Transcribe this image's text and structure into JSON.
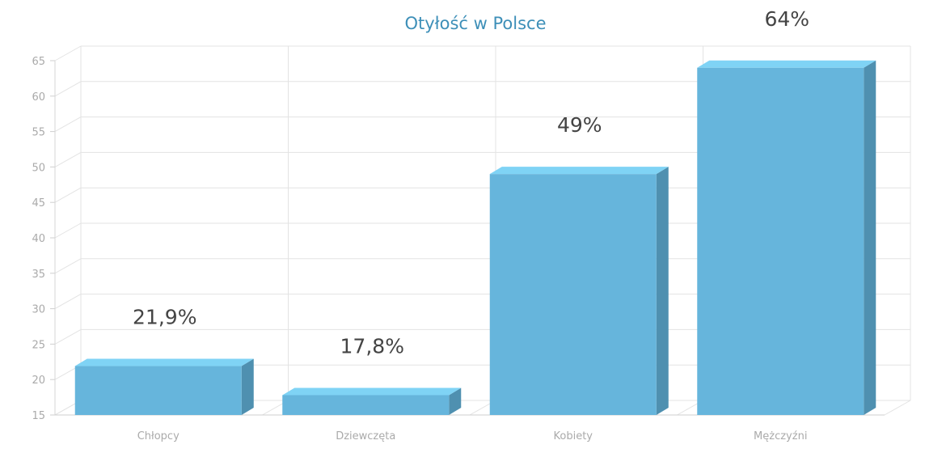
{
  "chart_data": {
    "type": "bar",
    "title": "Otyłość w Polsce",
    "categories": [
      "Chłopcy",
      "Dziewczęta",
      "Kobiety",
      "Mężczyźni"
    ],
    "values": [
      21.9,
      17.8,
      49,
      64
    ],
    "data_labels": [
      "21,9%",
      "17,8%",
      "49%",
      "64%"
    ],
    "ylim": [
      15,
      65
    ],
    "yticks": [
      15,
      20,
      25,
      30,
      35,
      40,
      45,
      50,
      55,
      60,
      65
    ],
    "grid": true,
    "style": "3d",
    "colors": {
      "front": "#66b5dc",
      "top": "#7fd3f5",
      "side": "#4f90b0",
      "title": "#3d8fb8"
    }
  }
}
